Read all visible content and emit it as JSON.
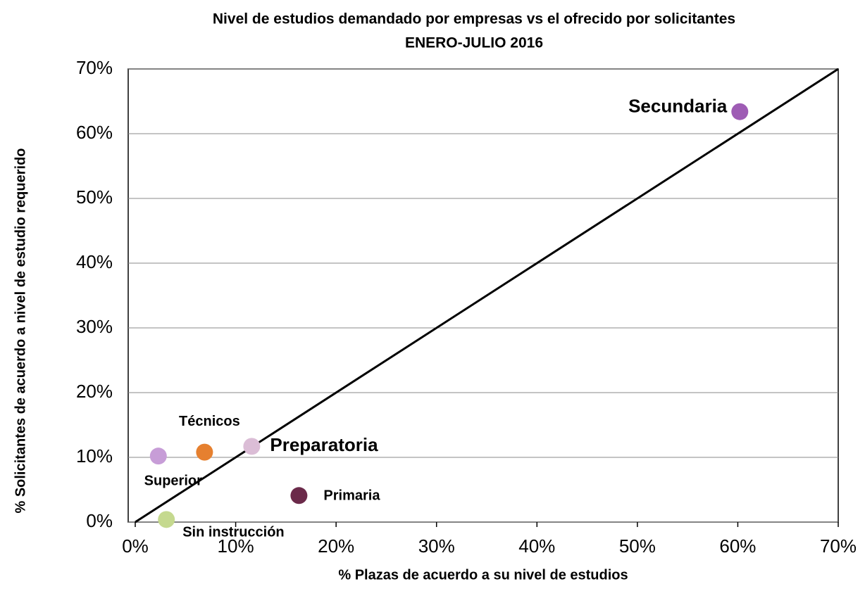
{
  "chart_data": {
    "type": "scatter",
    "title": "Nivel de estudios demandado por empresas vs el ofrecido por solicitantes",
    "subtitle": "ENERO-JULIO 2016",
    "x_label": "% Plazas de acuerdo a su nivel de estudios",
    "y_label": "% Solicitantes  de acuerdo a nivel de estudio requerido",
    "xlim": [
      0,
      70
    ],
    "ylim": [
      0,
      70
    ],
    "xticks": [
      {
        "value": 0,
        "label": "0%"
      },
      {
        "value": 10,
        "label": "10%"
      },
      {
        "value": 20,
        "label": "20%"
      },
      {
        "value": 30,
        "label": "30%"
      },
      {
        "value": 40,
        "label": "40%"
      },
      {
        "value": 50,
        "label": "50%"
      },
      {
        "value": 60,
        "label": "60%"
      },
      {
        "value": 70,
        "label": "70%"
      }
    ],
    "yticks": [
      {
        "value": 0,
        "label": "0%"
      },
      {
        "value": 10,
        "label": "10%"
      },
      {
        "value": 20,
        "label": "20%"
      },
      {
        "value": 30,
        "label": "30%"
      },
      {
        "value": 40,
        "label": "40%"
      },
      {
        "value": 50,
        "label": "50%"
      },
      {
        "value": 60,
        "label": "60%"
      },
      {
        "value": 70,
        "label": "70%"
      }
    ],
    "grid": true,
    "identity_line": true,
    "points": [
      {
        "name": "Secundaria",
        "x": 60.2,
        "y": 63.4,
        "color": "#9e5cb4"
      },
      {
        "name": "Preparatoria",
        "x": 11.6,
        "y": 11.7,
        "color": "#dbbdd6"
      },
      {
        "name": "Técnicos",
        "x": 6.9,
        "y": 10.8,
        "color": "#e6802f"
      },
      {
        "name": "Superior",
        "x": 2.3,
        "y": 10.2,
        "color": "#c79dd7"
      },
      {
        "name": "Primaria",
        "x": 16.3,
        "y": 4.1,
        "color": "#6b2a4a"
      },
      {
        "name": "Sin instrucción",
        "x": 3.1,
        "y": 0.4,
        "color": "#c5d98f"
      }
    ]
  }
}
